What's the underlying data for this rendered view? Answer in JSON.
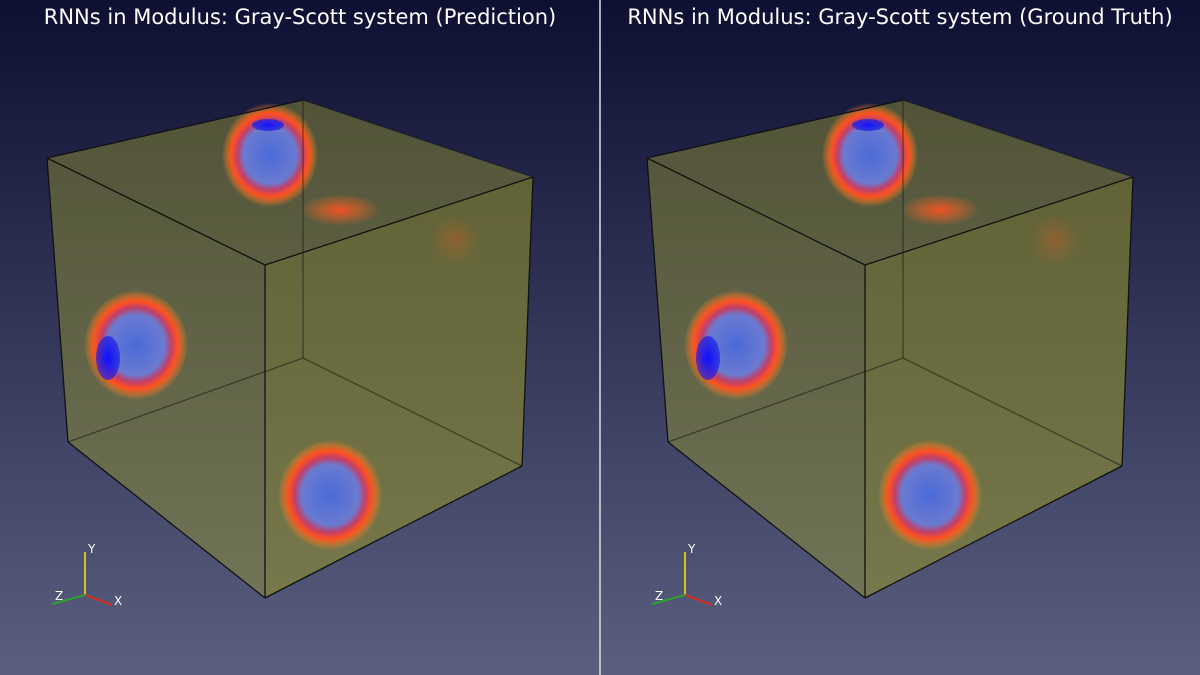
{
  "panels": [
    {
      "title": "RNNs in Modulus: Gray-Scott system (Prediction)",
      "axes": {
        "x": "X",
        "y": "Y",
        "z": "Z"
      }
    },
    {
      "title": "RNNs in Modulus: Gray-Scott system (Ground Truth)",
      "axes": {
        "x": "X",
        "y": "Y",
        "z": "Z"
      }
    }
  ]
}
